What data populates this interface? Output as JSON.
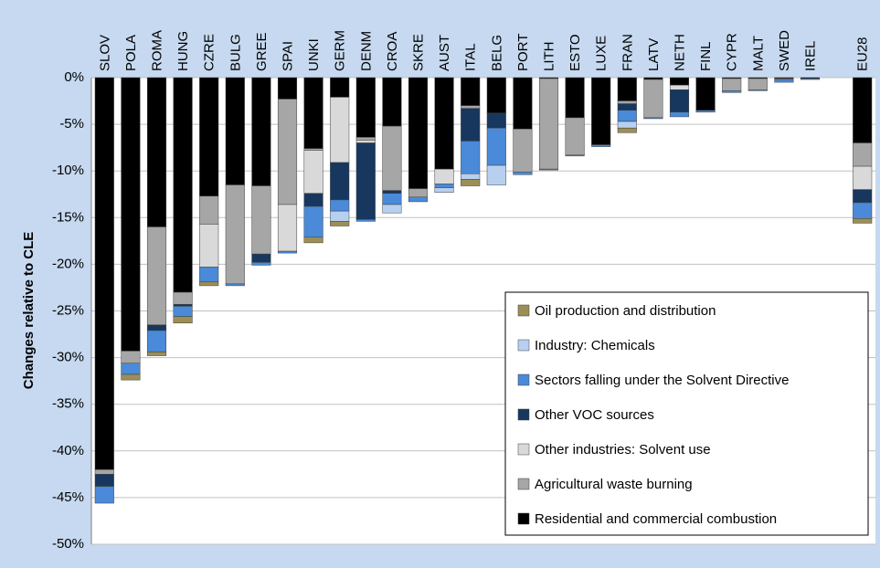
{
  "chart_data": {
    "type": "bar",
    "stacked": true,
    "y_label": "Changes relative to CLE",
    "categories": [
      "SLOV",
      "POLA",
      "ROMA",
      "HUNG",
      "CZRE",
      "BULG",
      "GREE",
      "SPAI",
      "UNKI",
      "GERM",
      "DENM",
      "CROA",
      "SKRE",
      "AUST",
      "ITAL",
      "BELG",
      "PORT",
      "LITH",
      "ESTO",
      "LUXE",
      "FRAN",
      "LATV",
      "NETH",
      "FINL",
      "CYPR",
      "MALT",
      "SWED",
      "IREL",
      null,
      "EU28"
    ],
    "series": [
      {
        "name": "Oil production and distribution",
        "color": "#9c8e55",
        "values": [
          0,
          -0.6,
          -0.4,
          -0.7,
          -0.4,
          0,
          0,
          0,
          -0.6,
          -0.5,
          0,
          0,
          0,
          0,
          -0.7,
          0,
          0,
          0,
          0,
          0,
          -0.5,
          0,
          0,
          0,
          0,
          0,
          0,
          0,
          null,
          -0.5
        ]
      },
      {
        "name": "Industry: Chemicals",
        "color": "#b8d0f0",
        "values": [
          0,
          0,
          0,
          0,
          0,
          0,
          0,
          0,
          0,
          -1.1,
          0,
          -0.9,
          0,
          -0.5,
          -0.6,
          -2.1,
          0,
          0,
          0,
          0,
          -0.7,
          0,
          0,
          0,
          0,
          0,
          0,
          0,
          null,
          0
        ]
      },
      {
        "name": "Sectors falling under the Solvent Directive",
        "color": "#4a8ad8",
        "values": [
          -1.8,
          -1.2,
          -2.3,
          -1.1,
          -1.6,
          -0.2,
          -0.3,
          -0.2,
          -3.3,
          -1.2,
          -0.2,
          -1.2,
          -0.5,
          -0.4,
          -3.5,
          -4.0,
          -0.3,
          -0.1,
          -0.1,
          -0.2,
          -1.2,
          -0.1,
          -0.5,
          -0.2,
          -0.2,
          -0.1,
          -0.3,
          -0.1,
          null,
          -1.7
        ]
      },
      {
        "name": "Other VOC sources",
        "color": "#17375e",
        "values": [
          -1.3,
          0,
          -0.6,
          -0.2,
          0,
          0,
          -0.9,
          0,
          -1.4,
          -4.0,
          -8.2,
          -0.3,
          0,
          0,
          -3.5,
          -1.6,
          0,
          0,
          0,
          0,
          -0.7,
          0,
          -2.4,
          0,
          0,
          0,
          0,
          0,
          null,
          -1.4
        ]
      },
      {
        "name": "Other industries: Solvent use",
        "color": "#d9d9d9",
        "values": [
          0,
          0,
          0,
          0,
          -4.6,
          0,
          0,
          -5.0,
          -4.6,
          -7.0,
          -0.3,
          0,
          0,
          -1.6,
          0,
          0,
          0,
          0,
          0,
          0,
          0,
          0,
          -0.5,
          0,
          0,
          0,
          0,
          0,
          null,
          -2.5
        ]
      },
      {
        "name": "Agricultural waste burning",
        "color": "#a6a6a6",
        "values": [
          -0.5,
          -1.3,
          -10.5,
          -1.3,
          -3.0,
          -10.6,
          -7.3,
          -11.3,
          -0.2,
          0,
          -0.3,
          -6.9,
          -0.9,
          0,
          -0.3,
          0,
          -4.6,
          -9.7,
          -4.0,
          0,
          -0.3,
          -4.1,
          0,
          0,
          -1.3,
          -1.2,
          -0.1,
          0,
          null,
          -2.5
        ]
      },
      {
        "name": "Residential and commercial combustion",
        "color": "#000000",
        "values": [
          -42.0,
          -29.3,
          -16.0,
          -23.0,
          -12.7,
          -11.5,
          -11.6,
          -2.3,
          -7.6,
          -2.1,
          -6.4,
          -5.2,
          -11.9,
          -9.8,
          -3.0,
          -3.8,
          -5.5,
          -0.1,
          -4.3,
          -7.2,
          -2.5,
          -0.2,
          -0.8,
          -3.5,
          -0.1,
          -0.1,
          -0.1,
          -0.1,
          null,
          -7.0
        ]
      }
    ],
    "ylim": [
      -50,
      0
    ],
    "yticks": [
      {
        "value": 0,
        "label": "0%"
      },
      {
        "value": -5,
        "label": "-5%"
      },
      {
        "value": -10,
        "label": "-10%"
      },
      {
        "value": -15,
        "label": "-15%"
      },
      {
        "value": -20,
        "label": "-20%"
      },
      {
        "value": -25,
        "label": "-25%"
      },
      {
        "value": -30,
        "label": "-30%"
      },
      {
        "value": -35,
        "label": "-35%"
      },
      {
        "value": -40,
        "label": "-40%"
      },
      {
        "value": -45,
        "label": "-45%"
      },
      {
        "value": -50,
        "label": "-50%"
      }
    ],
    "grid": true,
    "legend": "lower right"
  }
}
